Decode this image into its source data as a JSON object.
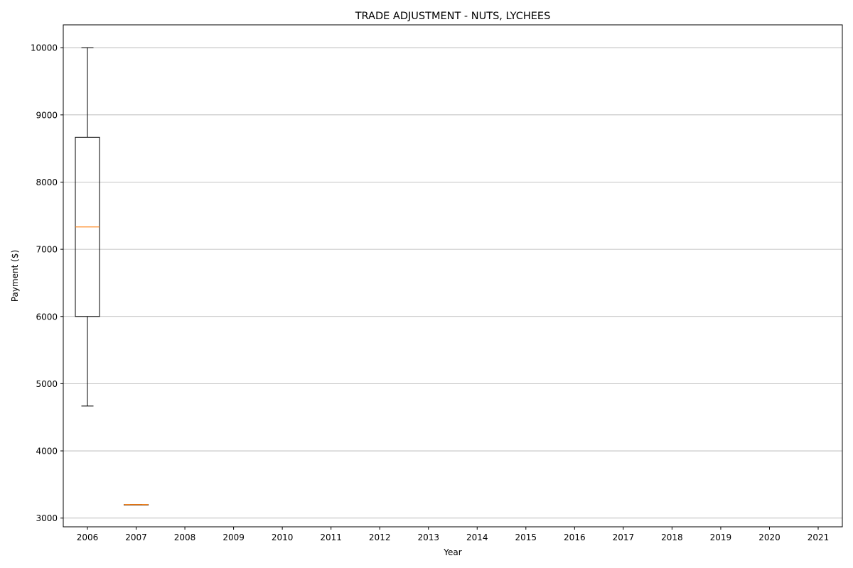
{
  "chart_data": {
    "type": "box",
    "title": "TRADE ADJUSTMENT - NUTS, LYCHEES",
    "xlabel": "Year",
    "ylabel": "Payment ($)",
    "categories": [
      "2006",
      "2007",
      "2008",
      "2009",
      "2010",
      "2011",
      "2012",
      "2013",
      "2014",
      "2015",
      "2016",
      "2017",
      "2018",
      "2019",
      "2020",
      "2021"
    ],
    "yticks": [
      3000,
      4000,
      5000,
      6000,
      7000,
      8000,
      9000,
      10000
    ],
    "ylim": [
      2870,
      10340
    ],
    "grid": "y",
    "boxes": [
      {
        "category": "2006",
        "whisker_low": 4667,
        "q1": 6000,
        "median": 7333,
        "q3": 8667,
        "whisker_high": 10000
      },
      {
        "category": "2007",
        "whisker_low": 3200,
        "q1": 3200,
        "median": 3200,
        "q3": 3200,
        "whisker_high": 3200
      }
    ],
    "colors": {
      "box": "#000000",
      "median": "#ff7f0e",
      "grid": "#b0b0b0"
    }
  }
}
